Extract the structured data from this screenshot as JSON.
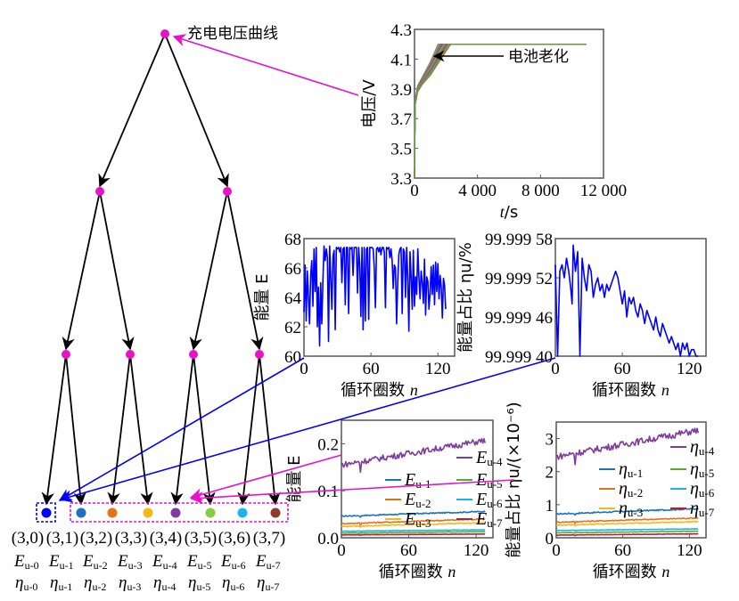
{
  "diagram": {
    "root_label": "充电电压曲线",
    "aging_label": "电池老化",
    "tree": {
      "node_color": "#e812c8",
      "edge_color": "#000000",
      "levels": 3,
      "leaves": [
        {
          "id": "(3,0)",
          "energy": "E",
          "energy_sub": "u-0",
          "ratio": "η",
          "ratio_sub": "u-0",
          "color": "#0000ff"
        },
        {
          "id": "(3,1)",
          "energy": "E",
          "energy_sub": "u-1",
          "ratio": "η",
          "ratio_sub": "u-1",
          "color": "#1a73be"
        },
        {
          "id": "(3,2)",
          "energy": "E",
          "energy_sub": "u-2",
          "ratio": "η",
          "ratio_sub": "u-2",
          "color": "#e8701a"
        },
        {
          "id": "(3,3)",
          "energy": "E",
          "energy_sub": "u-3",
          "ratio": "η",
          "ratio_sub": "u-3",
          "color": "#f7b718"
        },
        {
          "id": "(3,4)",
          "energy": "E",
          "energy_sub": "u-4",
          "ratio": "η",
          "ratio_sub": "u-4",
          "color": "#7e3a9e"
        },
        {
          "id": "(3,5)",
          "energy": "E",
          "energy_sub": "u-5",
          "ratio": "η",
          "ratio_sub": "u-5",
          "color": "#86cc44"
        },
        {
          "id": "(3,6)",
          "energy": "E",
          "energy_sub": "u-6",
          "ratio": "η",
          "ratio_sub": "u-6",
          "color": "#1ab3ee"
        },
        {
          "id": "(3,7)",
          "energy": "E",
          "energy_sub": "u-7",
          "ratio": "η",
          "ratio_sub": "u-7",
          "color": "#8e3b2c"
        }
      ],
      "group_box_colors": {
        "low": "#0000ff",
        "high": "#e812c8"
      }
    }
  },
  "chart_data": [
    {
      "id": "voltage",
      "type": "line",
      "title": "",
      "xlabel": "t/s",
      "ylabel": "电压/V",
      "xlim": [
        0,
        12000
      ],
      "ylim": [
        3.3,
        4.3
      ],
      "xticks": [
        "0",
        "4 000",
        "8 000",
        "12 000"
      ],
      "yticks": [
        "3.3",
        "3.5",
        "3.7",
        "3.9",
        "4.1",
        "4.3"
      ],
      "annotation": "电池老化",
      "series_note": "many charge curves, CC phase shortens with aging",
      "series": [
        {
          "name": "early",
          "x": [
            0,
            50,
            200,
            500,
            1000,
            1500,
            11000
          ],
          "y": [
            3.3,
            3.85,
            3.92,
            3.98,
            4.08,
            4.2,
            4.2
          ]
        },
        {
          "name": "late",
          "x": [
            0,
            50,
            200,
            500,
            1000,
            1600,
            2300,
            11000
          ],
          "y": [
            3.3,
            3.82,
            3.88,
            3.93,
            3.99,
            4.06,
            4.2,
            4.2
          ]
        }
      ]
    },
    {
      "id": "energy-low",
      "type": "line",
      "xlabel": "循环圈数 n",
      "ylabel": "能量 E",
      "xlim": [
        0,
        135
      ],
      "ylim": [
        60,
        68
      ],
      "xticks": [
        "0",
        "60",
        "120"
      ],
      "yticks": [
        "60",
        "62",
        "64",
        "66",
        "68"
      ],
      "color": "#0000ff",
      "series": [
        {
          "name": "E_u-0",
          "x": [
            0,
            1,
            2,
            3,
            4,
            5,
            6,
            7,
            8,
            9,
            10,
            11,
            12,
            13,
            14,
            15,
            16,
            17,
            18,
            19,
            20,
            21,
            22,
            23,
            24,
            25,
            26,
            27,
            28,
            29,
            30,
            31,
            32,
            33,
            34,
            35,
            36,
            37,
            38,
            39,
            40,
            41,
            42,
            43,
            44,
            45,
            46,
            47,
            48,
            49,
            50,
            51,
            52,
            53,
            54,
            55,
            56,
            57,
            58,
            59,
            60,
            61,
            62,
            63,
            64,
            65,
            66,
            67,
            68,
            69,
            70,
            71,
            72,
            73,
            74,
            75,
            76,
            77,
            78,
            79,
            80,
            81,
            82,
            83,
            84,
            85,
            86,
            87,
            88,
            89,
            90,
            91,
            92,
            93,
            94,
            95,
            96,
            97,
            98,
            99,
            100,
            101,
            102,
            103,
            104,
            105,
            106,
            107,
            108,
            109,
            110,
            111,
            112,
            113,
            114,
            115,
            116,
            117,
            118,
            119,
            120,
            121,
            122,
            123,
            124,
            125,
            126,
            127
          ],
          "y": [
            63,
            66.2,
            62.4,
            65.8,
            64.1,
            62.2,
            65.5,
            66.5,
            63.4,
            67.3,
            64.4,
            67.4,
            62,
            64.7,
            60.7,
            65,
            62.2,
            65.2,
            67.5,
            66.5,
            67.3,
            66.7,
            61,
            67.5,
            65.3,
            63.2,
            66.8,
            67.2,
            61.8,
            67.4,
            67.3,
            67.4,
            67.1,
            67.4,
            65,
            67.3,
            67.4,
            63.5,
            67.4,
            67.4,
            62.9,
            67.4,
            67.3,
            67.4,
            65.5,
            67.4,
            67.4,
            67.4,
            64.3,
            67.4,
            66.2,
            62.7,
            67.4,
            61.8,
            67.4,
            62.4,
            67.3,
            67.4,
            62.5,
            67.4,
            67.4,
            67.4,
            67.3,
            66,
            63.3,
            67.3,
            67.4,
            67.1,
            67.4,
            66.9,
            67.4,
            67.4,
            67.1,
            63.3,
            67.4,
            67.3,
            67.4,
            66.7,
            67.3,
            66.5,
            64.6,
            66.2,
            66,
            62.2,
            65,
            66.9,
            67.3,
            67.4,
            62.9,
            67.3,
            67.1,
            64,
            67.4,
            65.3,
            61.7,
            67.1,
            65.4,
            63.2,
            67.2,
            63.4,
            65.4,
            64.2,
            67.3,
            65.4,
            63.9,
            65.8,
            65,
            63.6,
            66.6,
            62.8,
            65.4,
            65.1,
            63.2,
            64.3,
            66.1,
            64.2,
            66.2,
            63.5,
            66.4,
            64.4,
            66.3,
            63.9,
            65.5,
            64.7,
            62.6,
            65.3,
            64.8,
            63.2
          ]
        }
      ]
    },
    {
      "id": "ratio-low",
      "type": "line",
      "xlabel": "循环圈数 n",
      "ylabel": "能量占比 ηu/%",
      "xlim": [
        0,
        135
      ],
      "ylim": [
        99.9994,
        99.99958
      ],
      "xticks": [
        "0",
        "60",
        "120"
      ],
      "yticks": [
        "99.999 40",
        "99.999 46",
        "99.999 52",
        "99.999 58"
      ],
      "color": "#0000ff",
      "series": [
        {
          "name": "η_u-0",
          "x": [
            0,
            2,
            4,
            6,
            8,
            10,
            12,
            14,
            15,
            16,
            18,
            20,
            22,
            24,
            26,
            28,
            30,
            32,
            34,
            36,
            38,
            40,
            42,
            44,
            46,
            48,
            50,
            52,
            54,
            56,
            58,
            60,
            62,
            64,
            66,
            68,
            70,
            72,
            74,
            76,
            78,
            80,
            82,
            84,
            86,
            88,
            90,
            92,
            94,
            96,
            98,
            100,
            102,
            104,
            106,
            108,
            110,
            112,
            114,
            116,
            118,
            120,
            122,
            124,
            126,
            128
          ],
          "y": [
            99.99954,
            99.99552,
            99.99953,
            99.99954,
            99.99952,
            99.99955,
            99.99953,
            99.9995,
            99.99948,
            99.99957,
            99.99953,
            99.99956,
            99.99557,
            99.99955,
            99.99952,
            99.9995,
            99.99954,
            99.99953,
            99.99949,
            99.99951,
            99.99952,
            99.9995,
            99.99951,
            99.99949,
            99.99951,
            99.9995,
            99.99951,
            99.99952,
            99.99953,
            99.99952,
            99.9995,
            99.99948,
            99.9995,
            99.99946,
            99.99949,
            99.99948,
            99.99949,
            99.99947,
            99.99946,
            99.99948,
            99.99947,
            99.99945,
            99.99947,
            99.99946,
            99.99945,
            99.99944,
            99.99946,
            99.99944,
            99.99943,
            99.99945,
            99.99944,
            99.99943,
            99.99942,
            99.99943,
            99.99942,
            99.99941,
            99.99942,
            99.9994,
            99.99942,
            99.99941,
            99.99942,
            99.9994,
            99.99941,
            99.99941,
            99.9994,
            99.9994
          ]
        }
      ]
    },
    {
      "id": "energy-high",
      "type": "line",
      "xlabel": "循环圈数 n",
      "ylabel": "能量 E",
      "xlim": [
        0,
        135
      ],
      "ylim": [
        0,
        0.25
      ],
      "xticks": [
        "0",
        "60",
        "120"
      ],
      "yticks": [
        "0.0",
        "0.1",
        "0.2"
      ],
      "legend": [
        "E_u-1",
        "E_u-2",
        "E_u-3",
        "E_u-4",
        "E_u-5",
        "E_u-6",
        "E_u-7"
      ],
      "legend_position": "center-right",
      "series": [
        {
          "name": "E_u-1",
          "color": "#1a73be",
          "start": 0.046,
          "end": 0.056
        },
        {
          "name": "E_u-2",
          "color": "#e8701a",
          "start": 0.03,
          "end": 0.04
        },
        {
          "name": "E_u-3",
          "color": "#f7b718",
          "start": 0.024,
          "end": 0.032
        },
        {
          "name": "E_u-4",
          "color": "#7e3a9e",
          "start": 0.155,
          "end": 0.207
        },
        {
          "name": "E_u-5",
          "color": "#5aa832",
          "start": 0.01,
          "end": 0.013
        },
        {
          "name": "E_u-6",
          "color": "#1ab3ee",
          "start": 0.014,
          "end": 0.017
        },
        {
          "name": "E_u-7",
          "color": "#b1212e",
          "start": 0.006,
          "end": 0.008
        }
      ]
    },
    {
      "id": "ratio-high",
      "type": "line",
      "xlabel": "循环圈数 n",
      "ylabel": "能量占比 ηu/(×10⁻⁶)",
      "xlim": [
        0,
        135
      ],
      "ylim": [
        0,
        3.5
      ],
      "xticks": [
        "0",
        "60",
        "120"
      ],
      "yticks": [
        "0",
        "1",
        "2",
        "3"
      ],
      "legend": [
        "η_u-1",
        "η_u-2",
        "η_u-3",
        "η_u-4",
        "η_u-5",
        "η_u-6",
        "η_u-7"
      ],
      "legend_position": "center-right",
      "series": [
        {
          "name": "η_u-1",
          "color": "#1a73be",
          "start": 0.72,
          "end": 0.88
        },
        {
          "name": "η_u-2",
          "color": "#e8701a",
          "start": 0.47,
          "end": 0.6
        },
        {
          "name": "η_u-3",
          "color": "#f7b718",
          "start": 0.38,
          "end": 0.49
        },
        {
          "name": "η_u-4",
          "color": "#7e3a9e",
          "start": 2.45,
          "end": 3.25
        },
        {
          "name": "η_u-5",
          "color": "#5aa832",
          "start": 0.15,
          "end": 0.2
        },
        {
          "name": "η_u-6",
          "color": "#1ab3ee",
          "start": 0.22,
          "end": 0.27
        },
        {
          "name": "η_u-7",
          "color": "#b1212e",
          "start": 0.08,
          "end": 0.12
        }
      ]
    }
  ]
}
